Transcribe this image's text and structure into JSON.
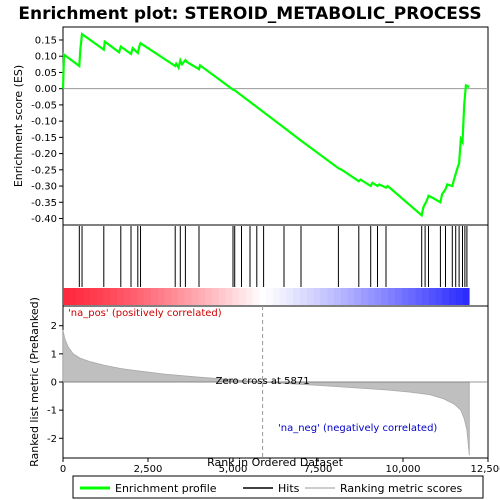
{
  "chart_data": {
    "type": "line",
    "title": "Enrichment plot: STEROID_METABOLIC_PROCESS",
    "es_panel": {
      "ylabel": "Enrichment score (ES)",
      "ylim": [
        -0.42,
        0.19
      ],
      "yticks": [
        "0.15",
        "0.10",
        "0.05",
        "0.00",
        "-0.05",
        "-0.10",
        "-0.15",
        "-0.20",
        "-0.25",
        "-0.30",
        "-0.35",
        "-0.40"
      ],
      "ytick_values": [
        0.15,
        0.1,
        0.05,
        0.0,
        -0.05,
        -0.1,
        -0.15,
        -0.2,
        -0.25,
        -0.3,
        -0.35,
        -0.4
      ],
      "series": [
        {
          "name": "Enrichment profile",
          "color": "#00ff00",
          "x": [
            0,
            30,
            480,
            510,
            560,
            1200,
            1230,
            1650,
            1700,
            2000,
            2050,
            2200,
            2250,
            2280,
            3300,
            3330,
            3400,
            3450,
            3500,
            3600,
            3650,
            4000,
            4030,
            5000,
            5050,
            6500,
            7000,
            8100,
            8200,
            8700,
            8750,
            9050,
            9100,
            9250,
            9300,
            9500,
            9550,
            10550,
            10600,
            10700,
            10750,
            10850,
            11100,
            11150,
            11250,
            11300,
            11450,
            11500,
            11600,
            11650,
            11700,
            11750,
            11800,
            11850,
            11950
          ],
          "y": [
            0.0,
            0.105,
            0.07,
            0.12,
            0.168,
            0.12,
            0.145,
            0.112,
            0.13,
            0.107,
            0.125,
            0.11,
            0.132,
            0.14,
            0.07,
            0.077,
            0.065,
            0.087,
            0.075,
            0.088,
            0.082,
            0.06,
            0.072,
            -0.003,
            -0.005,
            -0.12,
            -0.16,
            -0.245,
            -0.25,
            -0.285,
            -0.28,
            -0.3,
            -0.29,
            -0.3,
            -0.295,
            -0.305,
            -0.3,
            -0.39,
            -0.365,
            -0.345,
            -0.33,
            -0.335,
            -0.35,
            -0.325,
            -0.31,
            -0.295,
            -0.3,
            -0.28,
            -0.245,
            -0.23,
            -0.155,
            -0.165,
            -0.05,
            0.01,
            0.005
          ]
        }
      ]
    },
    "hits_panel": {
      "legend_label": "Hits",
      "hit_positions": [
        480,
        560,
        1200,
        1700,
        2000,
        2200,
        2280,
        3300,
        3450,
        3600,
        4000,
        5000,
        5050,
        5250,
        5500,
        5700,
        5900,
        6500,
        7000,
        8100,
        8700,
        9050,
        9250,
        9500,
        10550,
        10650,
        10750,
        11100,
        11250,
        11450,
        11550,
        11650,
        11750,
        11820,
        11880
      ]
    },
    "metric_panel": {
      "ylabel": "Ranked list metric (PreRanked)",
      "ylim": [
        -2.7,
        2.7
      ],
      "yticks": [
        "2",
        "1",
        "0",
        "-1",
        "-2"
      ],
      "ytick_values": [
        2,
        1,
        0,
        -1,
        -2
      ],
      "legend_label": "Ranking metric scores",
      "profile_x": [
        0,
        50,
        150,
        300,
        500,
        800,
        1200,
        1700,
        2300,
        3000,
        4000,
        5000,
        5871,
        6500,
        7500,
        8500,
        9500,
        10200,
        10800,
        11200,
        11500,
        11700,
        11800,
        11880,
        11950
      ],
      "profile_y": [
        1.85,
        1.55,
        1.25,
        1.0,
        0.85,
        0.72,
        0.6,
        0.48,
        0.38,
        0.28,
        0.17,
        0.08,
        0.0,
        -0.05,
        -0.12,
        -0.2,
        -0.28,
        -0.36,
        -0.45,
        -0.6,
        -0.78,
        -1.0,
        -1.3,
        -1.7,
        -2.6
      ],
      "zero_cross_label": "Zero cross at 5871",
      "zero_cross": 5871,
      "pos_label": "'na_pos' (positively correlated)",
      "neg_label": "'na_neg' (negatively correlated)"
    },
    "xaxis": {
      "xlabel": "Rank in Ordered Dataset",
      "xlim": [
        0,
        12500
      ],
      "xticks": [
        "0",
        "2,500",
        "5,000",
        "7,500",
        "10,000",
        "12,500"
      ],
      "xtick_values": [
        0,
        2500,
        5000,
        7500,
        10000,
        12500
      ],
      "n_genes": 11950
    },
    "legend": {
      "placement": "bottom",
      "entries": [
        "Enrichment profile",
        "Hits",
        "Ranking metric scores"
      ]
    }
  }
}
